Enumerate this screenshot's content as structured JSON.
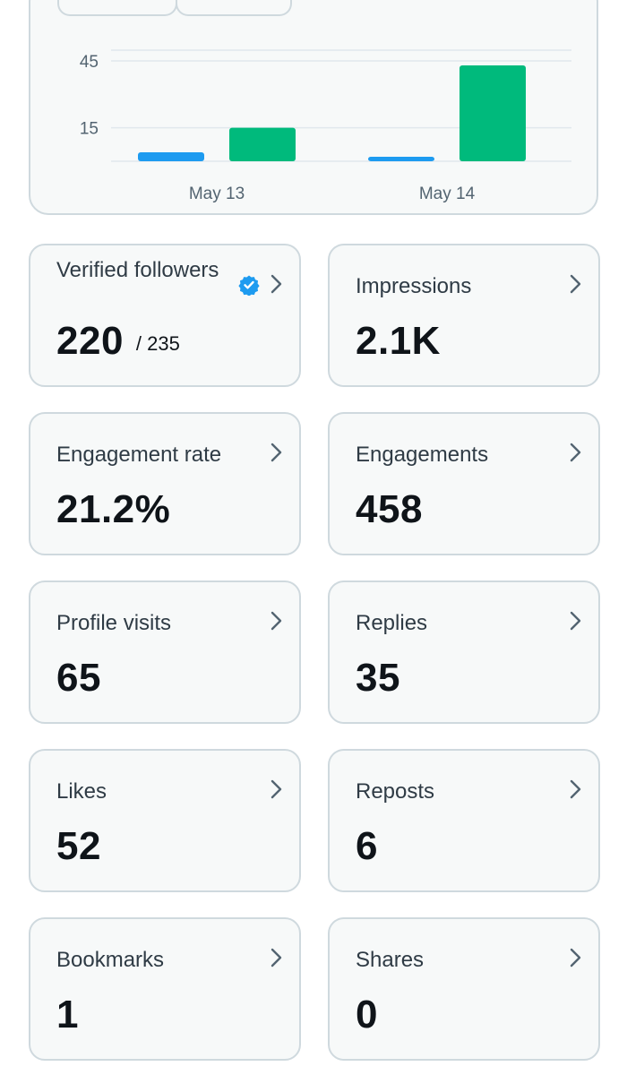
{
  "chart_data": {
    "type": "bar",
    "categories": [
      "May 13",
      "May 14"
    ],
    "series": [
      {
        "color": "#1d9bf0",
        "values": [
          4,
          2
        ]
      },
      {
        "color": "#00ba7c",
        "values": [
          15,
          43
        ]
      }
    ],
    "yticks": [
      "45",
      "15"
    ],
    "ylim": [
      0,
      55
    ],
    "grid": true
  },
  "metrics": [
    {
      "label": "Verified followers",
      "value": "220",
      "sub": "/ 235",
      "verified_icon": "verified-badge-icon"
    },
    {
      "label": "Impressions",
      "value": "2.1K"
    },
    {
      "label": "Engagement rate",
      "value": "21.2%"
    },
    {
      "label": "Engagements",
      "value": "458"
    },
    {
      "label": "Profile visits",
      "value": "65"
    },
    {
      "label": "Replies",
      "value": "35"
    },
    {
      "label": "Likes",
      "value": "52"
    },
    {
      "label": "Reposts",
      "value": "6"
    },
    {
      "label": "Bookmarks",
      "value": "1"
    },
    {
      "label": "Shares",
      "value": "0"
    }
  ],
  "colors": {
    "accent_blue": "#1d9bf0",
    "accent_green": "#00ba7c",
    "card_bg": "#f7f9f9",
    "card_border": "#cfd9de"
  }
}
